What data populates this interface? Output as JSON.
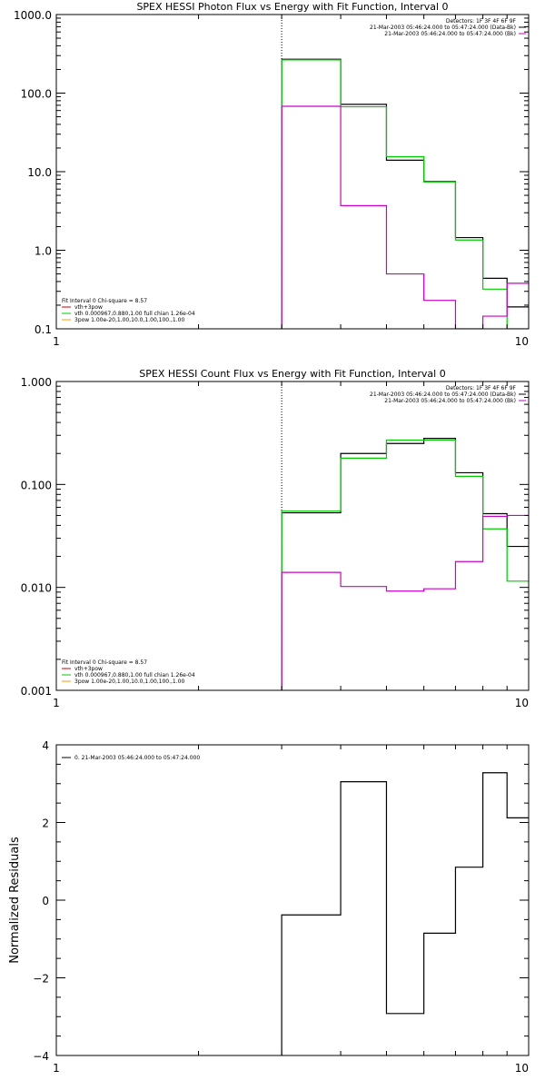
{
  "chart_data": [
    {
      "type": "line",
      "title": "SPEX HESSI Photon Flux vs Energy with Fit Function, Interval 0",
      "xlabel": "",
      "ylabel": "",
      "xscale": "log",
      "yscale": "log",
      "xlim": [
        1,
        10
      ],
      "ylim": [
        0.1,
        1000
      ],
      "xticks": [
        "1",
        "10"
      ],
      "yticks": [
        "0.1",
        "1.0",
        "10.0",
        "100.0",
        "1000.0"
      ],
      "vline_x": 3,
      "info_lines": [
        {
          "text": "Detectors: 1F 3F 4F 6F 9F",
          "color": ""
        },
        {
          "text": "21-Mar-2003 05:46:24.000 to 05:47:24.000 (Data-Bk)",
          "color": "#000000"
        },
        {
          "text": "21-Mar-2003 05:46:24.000 to 05:47:24.000 (Bk)",
          "color": "#cc00cc"
        }
      ],
      "legend_lines": [
        {
          "text": "Fit Interval 0   Chi-square = 8.57",
          "color": ""
        },
        {
          "text": "vth+3pow",
          "color": "#cc0000"
        },
        {
          "text": "vth 0.000967,0.880,1.00  full chian 1.26e-04",
          "color": "#00cc00"
        },
        {
          "text": "3pow 1.00e-20,1.00,10.0,1.00,100.,1.00",
          "color": "#ff9900"
        }
      ],
      "legend_position": "bottom-left",
      "series": [
        {
          "color": "#000000",
          "edges": [
            3,
            4,
            5,
            6,
            7,
            8,
            9,
            10
          ],
          "values": [
            270,
            72,
            14,
            7.5,
            1.45,
            0.44,
            0.19
          ]
        },
        {
          "color": "#00cc00",
          "edges": [
            3,
            4,
            5,
            6,
            7,
            8,
            9,
            10
          ],
          "values": [
            265,
            67,
            15.5,
            7.4,
            1.35,
            0.32,
            0.08
          ]
        },
        {
          "color": "#cc00cc",
          "edges": [
            3,
            4,
            5,
            6,
            7,
            8,
            9,
            10
          ],
          "values": [
            68,
            3.7,
            0.5,
            0.23,
            0.098,
            0.145,
            0.38
          ]
        }
      ]
    },
    {
      "type": "line",
      "title": "SPEX HESSI Count Flux vs Energy with Fit Function, Interval 0",
      "xlabel": "",
      "ylabel": "",
      "xscale": "log",
      "yscale": "log",
      "xlim": [
        1,
        10
      ],
      "ylim": [
        0.001,
        1
      ],
      "xticks": [
        "1",
        "10"
      ],
      "yticks": [
        "0.001",
        "0.010",
        "0.100",
        "1.000"
      ],
      "vline_x": 3,
      "info_lines": [
        {
          "text": "Detectors: 1F 3F 4F 6F 9F",
          "color": ""
        },
        {
          "text": "21-Mar-2003 05:46:24.000 to 05:47:24.000 (Data-Bk)",
          "color": "#000000"
        },
        {
          "text": "21-Mar-2003 05:46:24.000 to 05:47:24.000 (Bk)",
          "color": "#cc00cc"
        }
      ],
      "legend_lines": [
        {
          "text": "Fit Interval 0   Chi-square = 8.57",
          "color": ""
        },
        {
          "text": "vth+3pow",
          "color": "#cc0000"
        },
        {
          "text": "vth 0.000967,0.880,1.00  full chian 1.26e-04",
          "color": "#00cc00"
        },
        {
          "text": "3pow 1.00e-20,1.00,10.0,1.00,100.,1.00",
          "color": "#ff9900"
        }
      ],
      "legend_position": "bottom-left",
      "series": [
        {
          "color": "#000000",
          "edges": [
            3,
            4,
            5,
            6,
            7,
            8,
            9,
            10
          ],
          "values": [
            0.053,
            0.2,
            0.25,
            0.28,
            0.13,
            0.052,
            0.025
          ]
        },
        {
          "color": "#00cc00",
          "edges": [
            3,
            4,
            5,
            6,
            7,
            8,
            9,
            10
          ],
          "values": [
            0.055,
            0.18,
            0.27,
            0.27,
            0.12,
            0.037,
            0.0115
          ]
        },
        {
          "color": "#cc00cc",
          "edges": [
            3,
            4,
            5,
            6,
            7,
            8,
            9,
            10
          ],
          "values": [
            0.014,
            0.0102,
            0.0092,
            0.0097,
            0.0178,
            0.049,
            0.05
          ]
        }
      ]
    },
    {
      "type": "line",
      "title": "",
      "xlabel": "",
      "ylabel": "Normalized Residuals",
      "xscale": "log",
      "yscale": "linear",
      "xlim": [
        1,
        10
      ],
      "ylim": [
        -4,
        4
      ],
      "xticks": [
        "1",
        "10"
      ],
      "yticks": [
        "−4",
        "−2",
        "0",
        "2",
        "4"
      ],
      "legend_lines": [
        {
          "text": "0. 21-Mar-2003 05:46:24.000 to 05:47:24.000",
          "color": "#000000"
        }
      ],
      "legend_position": "top-left",
      "series": [
        {
          "color": "#000000",
          "edges": [
            3,
            4,
            5,
            6,
            7,
            8,
            9,
            10
          ],
          "values": [
            -0.38,
            3.05,
            -2.92,
            -0.85,
            0.85,
            3.28,
            2.12
          ]
        }
      ]
    }
  ]
}
